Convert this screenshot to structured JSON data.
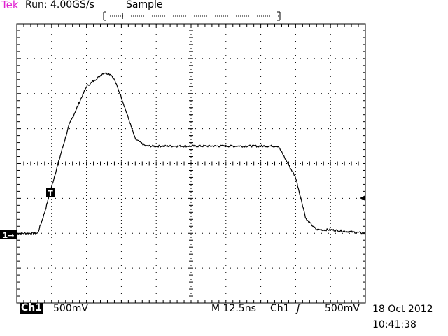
{
  "header": {
    "brand": "Tek",
    "run_status": "Run: 4.00GS/s",
    "acq_mode": "Sample"
  },
  "footer": {
    "channel": "Ch1",
    "channel_scale": "500mV",
    "timebase": "M 12.5ns",
    "trigger_source": "Ch1",
    "trigger_slope": "ʃ",
    "trigger_level": "500mV",
    "date": "18 Oct 2012",
    "time": "10:41:38"
  },
  "markers": {
    "trigger_marker": "T",
    "channel_marker": "1→",
    "trigger_position": "T"
  },
  "colors": {
    "brand": "#e020d0",
    "trace": "#000000",
    "grid": "#000000"
  },
  "chart_data": {
    "type": "line",
    "title": "",
    "xlabel": "",
    "ylabel": "",
    "grid": true,
    "xlim": [
      0,
      10
    ],
    "ylim": [
      -4,
      4
    ],
    "x_unit": "div",
    "y_unit": "div",
    "x": [
      0,
      0.3,
      0.6,
      0.8,
      1.1,
      1.5,
      2.0,
      2.5,
      2.7,
      2.8,
      3.0,
      3.4,
      3.7,
      4.0,
      5.0,
      6.0,
      7.0,
      7.5,
      8.0,
      8.3,
      8.6,
      9.0,
      10.0
    ],
    "series": [
      {
        "values": [
          -2.0,
          -2.0,
          -2.0,
          -1.4,
          -0.3,
          1.1,
          2.2,
          2.6,
          2.55,
          2.4,
          1.9,
          0.7,
          0.5,
          0.5,
          0.5,
          0.5,
          0.5,
          0.5,
          -0.4,
          -1.6,
          -1.9,
          -1.9,
          -2.0
        ]
      }
    ]
  }
}
